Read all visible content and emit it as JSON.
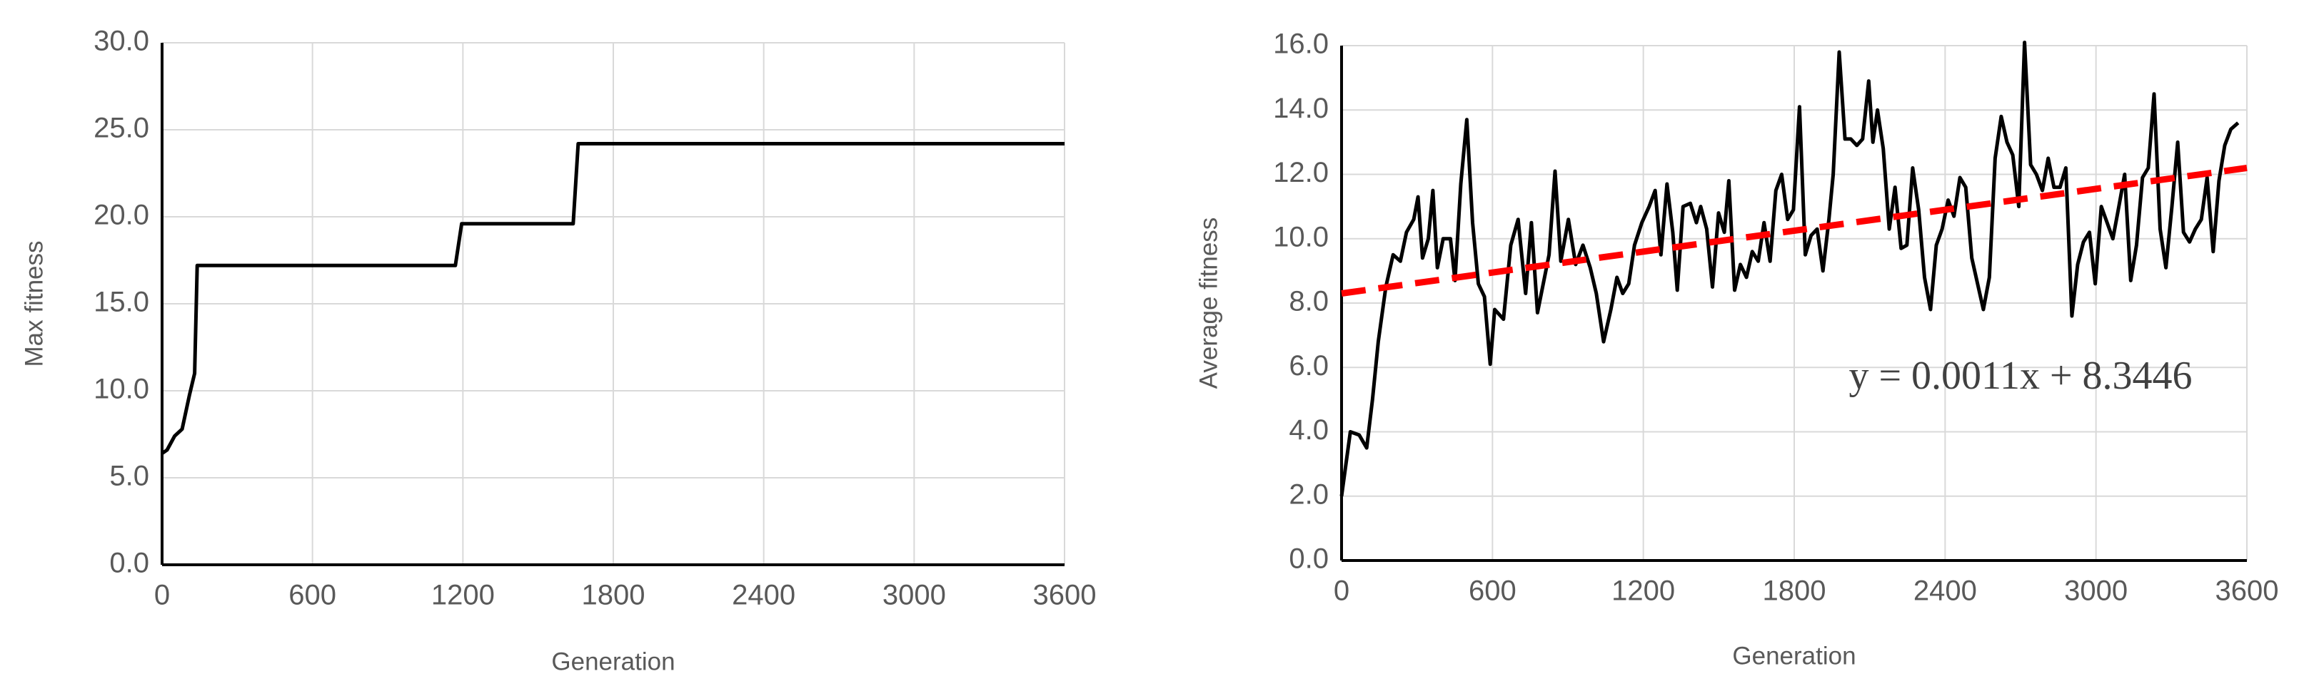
{
  "chart_data": [
    {
      "type": "line",
      "x_label": "Generation",
      "y_label": "Max fitness",
      "x": [
        0,
        20,
        50,
        80,
        110,
        130,
        140,
        1170,
        1195,
        1640,
        1660,
        3600
      ],
      "values": [
        6.4,
        6.6,
        7.4,
        7.8,
        9.8,
        11.0,
        17.2,
        17.2,
        19.6,
        19.6,
        24.2,
        24.2
      ],
      "color": "#000000",
      "xlim": [
        0,
        3600
      ],
      "xticks": [
        0,
        600,
        1200,
        1800,
        2400,
        3000,
        3600
      ],
      "ylim": [
        0,
        30
      ],
      "yticks": [
        {
          "value": 0,
          "label": "0.0"
        },
        {
          "value": 5,
          "label": "5.0"
        },
        {
          "value": 10,
          "label": "10.0"
        },
        {
          "value": 15,
          "label": "15.0"
        },
        {
          "value": 20,
          "label": "20.0"
        },
        {
          "value": 25,
          "label": "25.0"
        },
        {
          "value": 30,
          "label": "30.0"
        }
      ],
      "grid": true
    },
    {
      "type": "line",
      "x_label": "Generation",
      "y_label": "Average fitness",
      "x": [
        0,
        35,
        70,
        100,
        123,
        146,
        176,
        205,
        234,
        258,
        287,
        304,
        322,
        345,
        363,
        381,
        404,
        433,
        451,
        474,
        498,
        521,
        544,
        568,
        591,
        609,
        644,
        673,
        702,
        732,
        755,
        779,
        802,
        825,
        849,
        872,
        902,
        931,
        960,
        989,
        1013,
        1042,
        1071,
        1095,
        1118,
        1142,
        1165,
        1194,
        1223,
        1247,
        1270,
        1294,
        1317,
        1335,
        1358,
        1387,
        1411,
        1428,
        1452,
        1475,
        1499,
        1522,
        1540,
        1563,
        1586,
        1610,
        1633,
        1657,
        1680,
        1704,
        1727,
        1750,
        1774,
        1797,
        1821,
        1844,
        1867,
        1891,
        1914,
        1938,
        1955,
        1979,
        2002,
        2025,
        2049,
        2072,
        2096,
        2113,
        2131,
        2154,
        2178,
        2201,
        2225,
        2248,
        2271,
        2295,
        2318,
        2342,
        2365,
        2388,
        2412,
        2435,
        2459,
        2482,
        2506,
        2529,
        2552,
        2576,
        2599,
        2623,
        2646,
        2669,
        2693,
        2716,
        2740,
        2763,
        2787,
        2810,
        2833,
        2857,
        2880,
        2904,
        2927,
        2950,
        2974,
        2997,
        3021,
        3044,
        3067,
        3091,
        3114,
        3138,
        3161,
        3185,
        3208,
        3231,
        3255,
        3278,
        3302,
        3325,
        3348,
        3372,
        3395,
        3419,
        3442,
        3466,
        3489,
        3512,
        3536,
        3565
      ],
      "values": [
        2.0,
        4.0,
        3.9,
        3.5,
        5.0,
        6.8,
        8.5,
        9.5,
        9.3,
        10.2,
        10.6,
        11.3,
        9.4,
        10.0,
        11.5,
        9.1,
        10.0,
        10.0,
        8.7,
        11.7,
        13.7,
        10.5,
        8.6,
        8.2,
        6.1,
        7.8,
        7.5,
        9.8,
        10.6,
        8.3,
        10.5,
        7.7,
        8.6,
        9.5,
        12.1,
        9.3,
        10.6,
        9.2,
        9.8,
        9.1,
        8.3,
        6.8,
        7.8,
        8.8,
        8.3,
        8.6,
        9.8,
        10.5,
        11.0,
        11.5,
        9.5,
        11.7,
        10.2,
        8.4,
        11.0,
        11.1,
        10.5,
        11.0,
        10.3,
        8.5,
        10.8,
        10.2,
        11.8,
        8.4,
        9.2,
        8.8,
        9.6,
        9.3,
        10.5,
        9.3,
        11.5,
        12.0,
        10.6,
        10.9,
        14.1,
        9.5,
        10.1,
        10.3,
        9.0,
        10.6,
        12.0,
        15.8,
        13.1,
        13.1,
        12.9,
        13.1,
        14.9,
        13.0,
        14.0,
        12.8,
        10.3,
        11.6,
        9.7,
        9.8,
        12.2,
        10.9,
        8.8,
        7.8,
        9.8,
        10.3,
        11.2,
        10.7,
        11.9,
        11.6,
        9.4,
        8.6,
        7.8,
        8.8,
        12.5,
        13.8,
        13.0,
        12.6,
        11.0,
        16.1,
        12.3,
        12.0,
        11.5,
        12.5,
        11.6,
        11.6,
        12.2,
        7.6,
        9.2,
        9.9,
        10.2,
        8.6,
        11.0,
        10.5,
        10.0,
        11.0,
        12.0,
        8.7,
        9.8,
        11.9,
        12.2,
        14.5,
        10.3,
        9.1,
        11.0,
        13.0,
        10.2,
        9.9,
        10.3,
        10.6,
        11.9,
        9.6,
        11.8,
        12.9,
        13.4,
        13.6
      ],
      "color": "#000000",
      "trendline": {
        "x": [
          0,
          3600
        ],
        "values": [
          8.3,
          12.2
        ],
        "color": "#ff0000"
      },
      "annotation": "y = 0.0011x + 8.3446",
      "xlim": [
        0,
        3600
      ],
      "xticks": [
        0,
        600,
        1200,
        1800,
        2400,
        3000,
        3600
      ],
      "ylim": [
        0,
        16
      ],
      "yticks": [
        {
          "value": 0,
          "label": "0.0"
        },
        {
          "value": 2,
          "label": "2.0"
        },
        {
          "value": 4,
          "label": "4.0"
        },
        {
          "value": 6,
          "label": "6.0"
        },
        {
          "value": 8,
          "label": "8.0"
        },
        {
          "value": 10,
          "label": "10.0"
        },
        {
          "value": 12,
          "label": "12.0"
        },
        {
          "value": 14,
          "label": "14.0"
        },
        {
          "value": 16,
          "label": "16.0"
        }
      ],
      "grid": true
    }
  ]
}
